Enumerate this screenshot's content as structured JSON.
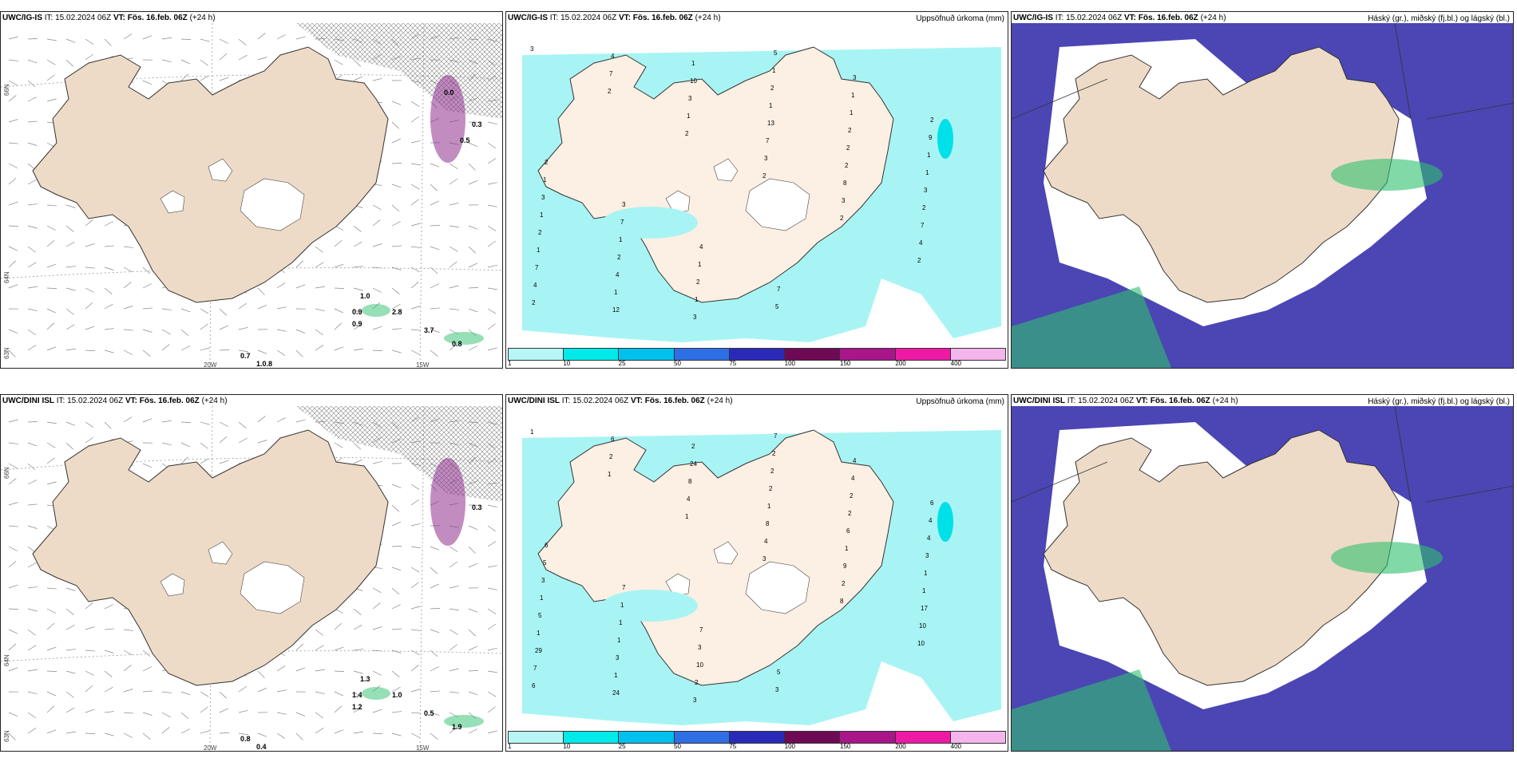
{
  "colors": {
    "land": "#eedbc7",
    "land_light": "#fcefe3",
    "sea": "#ffffff",
    "precip_light": "#a8f4f4",
    "precip_mid": "#00e0e8",
    "cloud_high_dark": "#4b46b4",
    "cloud_low_light": "#d6dcf4",
    "green": "#2fbf6e",
    "purple": "#8e2f8e"
  },
  "legend": {
    "ticks": [
      "1",
      "10",
      "25",
      "50",
      "75",
      "100",
      "150",
      "200",
      "400"
    ],
    "swatches": [
      "#b6f6f6",
      "#00eaea",
      "#00c0ee",
      "#2f6fe6",
      "#2a2ab8",
      "#6e0a55",
      "#a8168a",
      "#ee1aa6",
      "#f4b4ec"
    ]
  },
  "rows": [
    {
      "model": "UWC/IG-IS",
      "issue_label": "IT:",
      "issue_time": "15.02.2024 06Z",
      "valid_label": "VT:",
      "valid_time": "Fös. 16.feb. 06Z",
      "lead": "(+24 h)",
      "precip_title": "Uppsöfnuð úrkoma (mm)",
      "cloud_title": "Háský (gr.), miðský (fj.bl.) og lágský (bl.)",
      "lat_labels": [
        "66N",
        "64N",
        "63N"
      ],
      "lon_labels": [
        "20W",
        "15W"
      ],
      "wind_values": [
        "1.0",
        "0.9",
        "0.9",
        "2.8",
        "3.7",
        "0.8",
        "0.7",
        "1.0.8",
        "0.3",
        "0.5",
        "0.0"
      ],
      "precip_values": [
        "3",
        "2",
        "2",
        "2",
        "2",
        "2",
        "2",
        "7",
        "1",
        "3",
        "3",
        "4",
        "4",
        "4",
        "3",
        "7",
        "8",
        "7",
        "7",
        "12",
        "10",
        "13",
        "2",
        "2",
        "1",
        "1",
        "1",
        "1",
        "2",
        "3",
        "2",
        "4",
        "3",
        "2",
        "2",
        "1",
        "1",
        "2",
        "1",
        "1",
        "1",
        "1",
        "3",
        "1",
        "2",
        "5",
        "1",
        "9",
        "1",
        "7",
        "1",
        "5",
        "3",
        "2",
        "2",
        "3",
        "4",
        "7"
      ]
    },
    {
      "model": "UWC/DINI ISL",
      "issue_label": "IT:",
      "issue_time": "15.02.2024 06Z",
      "valid_label": "VT:",
      "valid_time": "Fös. 16.feb. 06Z",
      "lead": "(+24 h)",
      "precip_title": "Uppsöfnuð úrkoma (mm)",
      "cloud_title": "Háský (gr.), miðský (fj.bl.) og lágský (bl.)",
      "lat_labels": [
        "66N",
        "64N",
        "63N"
      ],
      "lon_labels": [
        "20W",
        "15W"
      ],
      "wind_values": [
        "1.3",
        "1.4",
        "1.2",
        "1.0",
        "0.5",
        "1.9",
        "0.8",
        "0.4",
        "0.3"
      ],
      "precip_values": [
        "1",
        "1",
        "1",
        "3",
        "8",
        "10",
        "6",
        "2",
        "4",
        "4",
        "2",
        "10",
        "7",
        "6",
        "8",
        "8",
        "9",
        "17",
        "29",
        "24",
        "24",
        "1",
        "1",
        "1",
        "1",
        "1",
        "2",
        "2",
        "6",
        "1",
        "5",
        "3",
        "3",
        "2",
        "2",
        "3",
        "1",
        "1",
        "2",
        "2",
        "2",
        "4",
        "3",
        "1",
        "10",
        "7",
        "4",
        "4",
        "5",
        "1",
        "3",
        "3",
        "4",
        "6",
        "6",
        "7",
        "7",
        "5"
      ]
    }
  ]
}
